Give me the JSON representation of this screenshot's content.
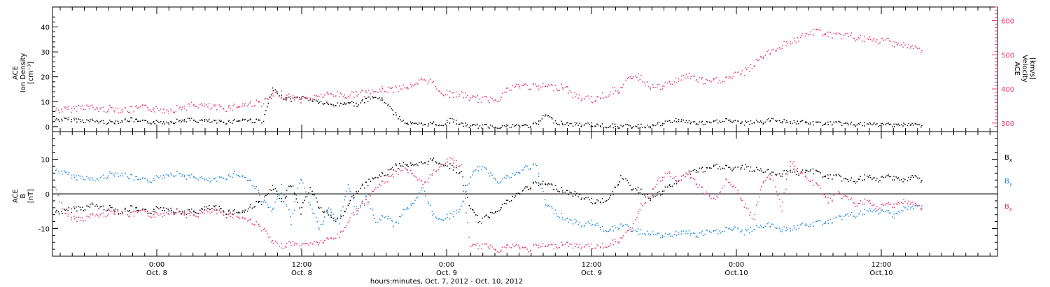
{
  "colors": {
    "black": "#000000",
    "pink": "#e8356a",
    "blue": "#1e88e5"
  },
  "chart_data": [
    {
      "type": "scatter",
      "panel": "top",
      "left_axis": {
        "label_lines": [
          "ACE",
          "Ion Density",
          "[cm⁻³]"
        ],
        "ticks": [
          "0",
          "10",
          "20",
          "30",
          "40"
        ],
        "ylim": [
          -2,
          48
        ]
      },
      "right_axis": {
        "label_lines": [
          "ACE",
          "Velocity",
          "[km/s]"
        ],
        "ticks": [
          "300",
          "400",
          "500",
          "600"
        ],
        "ylim": [
          275,
          640
        ]
      },
      "series": [
        {
          "color": "#000000",
          "axis": "left",
          "x": [
            0,
            1,
            2,
            3,
            4,
            5,
            6,
            7,
            8,
            9,
            10,
            11,
            12,
            13,
            14,
            15,
            16,
            17,
            18,
            19,
            20,
            21,
            22,
            23,
            24,
            25,
            26,
            27,
            28,
            29,
            30,
            31,
            32,
            33,
            34,
            35,
            36,
            37,
            38,
            39,
            40,
            41,
            42,
            43,
            44,
            45,
            46,
            47,
            48,
            49,
            50,
            51,
            52,
            53,
            54,
            55,
            56,
            57,
            58,
            59,
            60,
            61,
            62,
            63,
            64,
            65,
            66,
            67,
            68,
            69,
            70,
            71,
            72,
            73,
            74,
            75,
            76,
            77,
            78,
            79,
            80,
            81,
            82,
            83,
            84,
            85,
            86,
            87,
            88,
            89,
            90,
            91,
            92
          ],
          "y": [
            3,
            3,
            3,
            2.5,
            2.5,
            2,
            2,
            2.5,
            3,
            2,
            2,
            2,
            2,
            2.5,
            3,
            2.5,
            2.5,
            2,
            2,
            2.5,
            3,
            2.5,
            2.5,
            15,
            12,
            11,
            12,
            11,
            10,
            9,
            9,
            10,
            9,
            11,
            12,
            10,
            5,
            2,
            1,
            1,
            1.5,
            1,
            3,
            1,
            0.5,
            0.3,
            0.3,
            0.3,
            0.3,
            0.5,
            0.5,
            1,
            5,
            2,
            1.5,
            1,
            1,
            1,
            0.5,
            0.5,
            0.3,
            0.3,
            0.3,
            0.5,
            1,
            2,
            3,
            2,
            1.5,
            1.5,
            2,
            3,
            2,
            1.5,
            2,
            2,
            3,
            2.5,
            2,
            2,
            1.5,
            1.5,
            1.5,
            1.5,
            1.2,
            1.2,
            1,
            1,
            1,
            1,
            1,
            0.8,
            0.8
          ]
        },
        {
          "color": "#e8356a",
          "axis": "right",
          "x": [
            0,
            1,
            2,
            3,
            4,
            5,
            6,
            7,
            8,
            9,
            10,
            11,
            12,
            13,
            14,
            15,
            16,
            17,
            18,
            19,
            20,
            21,
            22,
            23,
            24,
            25,
            26,
            27,
            28,
            29,
            30,
            31,
            32,
            33,
            34,
            35,
            36,
            37,
            38,
            39,
            40,
            41,
            42,
            43,
            44,
            45,
            46,
            47,
            48,
            49,
            50,
            51,
            52,
            53,
            54,
            55,
            56,
            57,
            58,
            59,
            60,
            61,
            62,
            63,
            64,
            65,
            66,
            67,
            68,
            69,
            70,
            71,
            72,
            73,
            74,
            75,
            76,
            77,
            78,
            79,
            80,
            81,
            82,
            83,
            84,
            85,
            86,
            87,
            88,
            89,
            90,
            91,
            92
          ],
          "y": [
            340,
            340,
            345,
            350,
            345,
            340,
            345,
            340,
            340,
            345,
            345,
            340,
            340,
            345,
            350,
            355,
            350,
            345,
            345,
            350,
            355,
            360,
            360,
            380,
            385,
            375,
            370,
            375,
            380,
            385,
            385,
            380,
            390,
            385,
            395,
            400,
            400,
            410,
            405,
            430,
            420,
            390,
            385,
            385,
            375,
            370,
            370,
            375,
            400,
            410,
            410,
            405,
            410,
            405,
            410,
            380,
            375,
            370,
            380,
            395,
            400,
            440,
            435,
            410,
            405,
            415,
            430,
            440,
            430,
            420,
            425,
            430,
            440,
            450,
            470,
            500,
            510,
            530,
            540,
            550,
            565,
            570,
            560,
            555,
            560,
            550,
            545,
            540,
            545,
            535,
            530,
            520,
            515
          ]
        }
      ]
    },
    {
      "type": "scatter",
      "panel": "bottom",
      "left_axis": {
        "label_lines": [
          "ACE",
          "B",
          "[nT]"
        ],
        "ticks": [
          "-10",
          "0",
          "10"
        ],
        "ylim": [
          -18,
          18
        ]
      },
      "legend": [
        "B",
        "B",
        "B"
      ],
      "legend_subscripts": [
        "x",
        "y",
        "z"
      ],
      "series": [
        {
          "color": "#000000",
          "x": [
            0,
            1,
            2,
            3,
            4,
            5,
            6,
            7,
            8,
            9,
            10,
            11,
            12,
            13,
            14,
            15,
            16,
            17,
            18,
            19,
            20,
            21,
            22,
            23,
            24,
            25,
            26,
            27,
            28,
            29,
            30,
            31,
            32,
            33,
            34,
            35,
            36,
            37,
            38,
            39,
            40,
            41,
            42,
            43,
            44,
            45,
            46,
            47,
            48,
            49,
            50,
            51,
            52,
            53,
            54,
            55,
            56,
            57,
            58,
            59,
            60,
            61,
            62,
            63,
            64,
            65,
            66,
            67,
            68,
            69,
            70,
            71,
            72,
            73,
            74,
            75,
            76,
            77,
            78,
            79,
            80,
            81,
            82,
            83,
            84,
            85,
            86,
            87,
            88,
            89,
            90,
            91,
            92
          ],
          "y": [
            -5,
            -5,
            -4,
            -4,
            -3,
            -4,
            -4,
            -5,
            -4,
            -5,
            -5,
            -4,
            -4,
            -5,
            -5,
            -5,
            -4,
            -4,
            -5,
            -5,
            -5,
            -3,
            -2,
            2,
            -2,
            3,
            -5,
            2,
            -4,
            -6,
            -8,
            -3,
            1,
            3,
            5,
            6,
            8,
            9,
            8,
            9,
            10,
            9,
            8,
            6,
            -4,
            -8,
            -6,
            -4,
            -2,
            0,
            2,
            3,
            3,
            2,
            1,
            0,
            -1,
            -2,
            -2,
            0,
            5,
            2,
            1,
            -1,
            0,
            2,
            4,
            6,
            7,
            7,
            8,
            8,
            7,
            8,
            7,
            7,
            6,
            6,
            7,
            6,
            7,
            6,
            5,
            5,
            4,
            4,
            5,
            4,
            5,
            5,
            4,
            5,
            4
          ]
        },
        {
          "color": "#1e88e5",
          "x": [
            0,
            1,
            2,
            3,
            4,
            5,
            6,
            7,
            8,
            9,
            10,
            11,
            12,
            13,
            14,
            15,
            16,
            17,
            18,
            19,
            20,
            21,
            22,
            23,
            24,
            25,
            26,
            27,
            28,
            29,
            30,
            31,
            32,
            33,
            34,
            35,
            36,
            37,
            38,
            39,
            40,
            41,
            42,
            43,
            44,
            45,
            46,
            47,
            48,
            49,
            50,
            51,
            52,
            53,
            54,
            55,
            56,
            57,
            58,
            59,
            60,
            61,
            62,
            63,
            64,
            65,
            66,
            67,
            68,
            69,
            70,
            71,
            72,
            73,
            74,
            75,
            76,
            77,
            78,
            79,
            80,
            81,
            82,
            83,
            84,
            85,
            86,
            87,
            88,
            89,
            90,
            91,
            92
          ],
          "y": [
            7,
            6,
            5,
            5,
            4,
            5,
            6,
            6,
            5,
            4,
            4,
            5,
            6,
            6,
            5,
            5,
            4,
            4,
            5,
            6,
            5,
            3,
            -2,
            -5,
            2,
            -8,
            5,
            -3,
            -10,
            -4,
            -8,
            3,
            -5,
            -1,
            -8,
            -6,
            -9,
            -4,
            -3,
            2,
            -6,
            -7,
            -6,
            -4,
            5,
            8,
            6,
            4,
            5,
            6,
            8,
            8,
            -3,
            -5,
            -7,
            -8,
            -9,
            -8,
            -10,
            -10,
            -9,
            -10,
            -11,
            -11,
            -12,
            -12,
            -11,
            -11,
            -12,
            -11,
            -11,
            -10,
            -10,
            -11,
            -10,
            -9,
            -9,
            -10,
            -10,
            -9,
            -9,
            -8,
            -8,
            -7,
            -6,
            -6,
            -5,
            -5,
            -5,
            -6,
            -4,
            -4,
            -3
          ]
        },
        {
          "color": "#e8356a",
          "x": [
            0,
            1,
            2,
            3,
            4,
            5,
            6,
            7,
            8,
            9,
            10,
            11,
            12,
            13,
            14,
            15,
            16,
            17,
            18,
            19,
            20,
            21,
            22,
            23,
            24,
            25,
            26,
            27,
            28,
            29,
            30,
            31,
            32,
            33,
            34,
            35,
            36,
            37,
            38,
            39,
            40,
            41,
            42,
            43,
            44,
            45,
            46,
            47,
            48,
            49,
            50,
            51,
            52,
            53,
            54,
            55,
            56,
            57,
            58,
            59,
            60,
            61,
            62,
            63,
            64,
            65,
            66,
            67,
            68,
            69,
            70,
            71,
            72,
            73,
            74,
            75,
            76,
            77,
            78,
            79,
            80,
            81,
            82,
            83,
            84,
            85,
            86,
            87,
            88,
            89,
            90,
            91,
            92
          ],
          "y": [
            2,
            -6,
            -7,
            -7,
            -6,
            -6,
            -5,
            -5,
            -6,
            -5,
            -6,
            -6,
            -5,
            -5,
            -6,
            -6,
            -5,
            -5,
            -6,
            -6,
            -7,
            -8,
            -10,
            -14,
            -15,
            -14,
            -15,
            -14,
            -14,
            -13,
            -12,
            -8,
            -4,
            -2,
            2,
            4,
            6,
            8,
            5,
            3,
            6,
            9,
            10,
            8,
            -15,
            -15,
            -15,
            -16,
            -15,
            -15,
            -16,
            -15,
            -15,
            -15,
            -14,
            -15,
            -15,
            -15,
            -15,
            -14,
            -13,
            -10,
            -4,
            0,
            4,
            6,
            4,
            6,
            3,
            0,
            -2,
            4,
            2,
            -3,
            -7,
            4,
            5,
            -4,
            10,
            6,
            4,
            2,
            -2,
            0,
            -1,
            -3,
            -2,
            -4,
            -3,
            -3,
            -2,
            -3,
            -4
          ]
        }
      ]
    }
  ],
  "time_axis": {
    "major": [
      {
        "time": "0:00",
        "date": "Oct. 8"
      },
      {
        "time": "12:00",
        "date": "Oct. 8"
      },
      {
        "time": "0:00",
        "date": "Oct. 9"
      },
      {
        "time": "12:00",
        "date": "Oct. 9"
      },
      {
        "time": "0:00",
        "date": "Oct.10"
      },
      {
        "time": "12:00",
        "date": "Oct.10"
      }
    ],
    "title": "hours:minutes, Oct.  7, 2012 - Oct. 10, 2012"
  }
}
